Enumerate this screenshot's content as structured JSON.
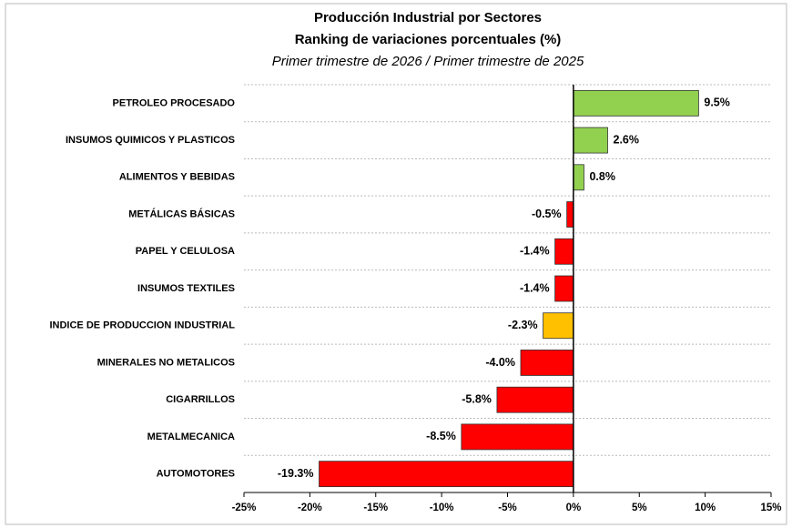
{
  "chart_data": {
    "type": "barh",
    "title": "Producción Industrial por Sectores",
    "subtitle": "Ranking de variaciones porcentuales (%)",
    "period": "Primer trimestre de 2026 / Primer trimestre de 2025",
    "categories": [
      "PETROLEO PROCESADO",
      "INSUMOS QUIMICOS Y PLASTICOS",
      "ALIMENTOS Y BEBIDAS",
      "METÁLICAS BÁSICAS",
      "PAPEL Y CELULOSA",
      "INSUMOS TEXTILES",
      "INDICE DE PRODUCCION INDUSTRIAL",
      "MINERALES NO METALICOS",
      "CIGARRILLOS",
      "METALMECANICA",
      "AUTOMOTORES"
    ],
    "values": [
      9.5,
      2.6,
      0.8,
      -0.5,
      -1.4,
      -1.4,
      -2.3,
      -4.0,
      -5.8,
      -8.5,
      -19.3
    ],
    "value_labels": [
      "9.5%",
      "2.6%",
      "0.8%",
      "-0.5%",
      "-1.4%",
      "-1.4%",
      "-2.3%",
      "-4.0%",
      "-5.8%",
      "-8.5%",
      "-19.3%"
    ],
    "colors": [
      "#92d050",
      "#92d050",
      "#92d050",
      "#ff0000",
      "#ff0000",
      "#ff0000",
      "#ffc000",
      "#ff0000",
      "#ff0000",
      "#ff0000",
      "#ff0000"
    ],
    "xlim": [
      -25,
      15
    ],
    "xticks": [
      {
        "value": -25,
        "label": "-25%"
      },
      {
        "value": -20,
        "label": "-20%"
      },
      {
        "value": -15,
        "label": "-15%"
      },
      {
        "value": -10,
        "label": "-10%"
      },
      {
        "value": -5,
        "label": "-5%"
      },
      {
        "value": 0,
        "label": "0%"
      },
      {
        "value": 5,
        "label": "5%"
      },
      {
        "value": 10,
        "label": "10%"
      },
      {
        "value": 15,
        "label": "15%"
      }
    ],
    "grid": true
  }
}
